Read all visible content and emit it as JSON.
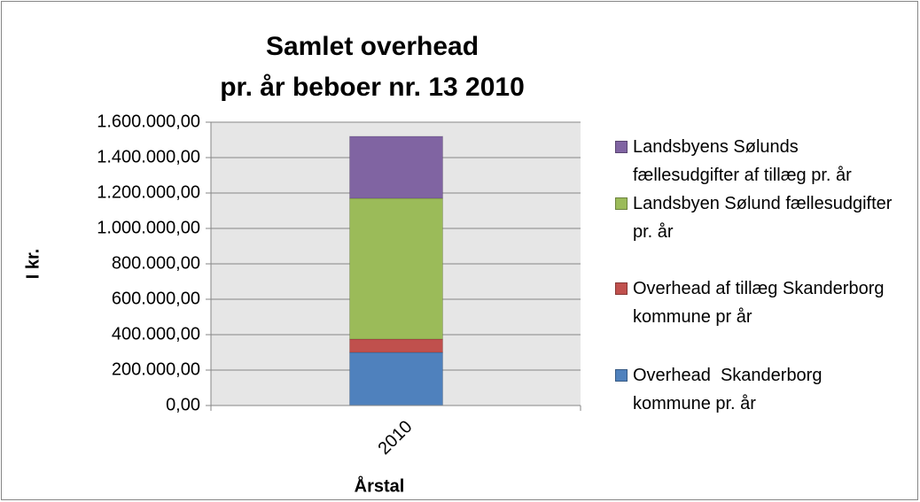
{
  "chart_data": {
    "type": "stacked_bar",
    "title": [
      "Samlet overhead",
      "pr. år  beboer nr. 13  2010"
    ],
    "x_label": "Årstal",
    "y_label": "I kr.",
    "categories": [
      "2010"
    ],
    "series": [
      {
        "name": "Overhead  Skanderborg kommune pr. år",
        "color": "#4f81bd",
        "values": [
          300000
        ]
      },
      {
        "name": "Overhead af tillæg Skanderborg kommune pr år",
        "color": "#c0504d",
        "values": [
          75000
        ]
      },
      {
        "name": "Landsbyen Sølund fællesudgifter pr. år",
        "color": "#9bbb59",
        "values": [
          795000
        ]
      },
      {
        "name": "Landsbyens Sølunds fællesudgifter af tillæg pr. år",
        "color": "#8064a2",
        "values": [
          350000
        ]
      }
    ],
    "ylim": [
      0,
      1600000
    ],
    "yticks": [
      {
        "value": 0,
        "label": "0,00"
      },
      {
        "value": 200000,
        "label": "200.000,00"
      },
      {
        "value": 400000,
        "label": "400.000,00"
      },
      {
        "value": 600000,
        "label": "600.000,00"
      },
      {
        "value": 800000,
        "label": "800.000,00"
      },
      {
        "value": 1000000,
        "label": "1.000.000,00"
      },
      {
        "value": 1200000,
        "label": "1.200.000,00"
      },
      {
        "value": 1400000,
        "label": "1.400.000,00"
      },
      {
        "value": 1600000,
        "label": "1.600.000,00"
      }
    ],
    "grid": true,
    "legend": "right"
  }
}
